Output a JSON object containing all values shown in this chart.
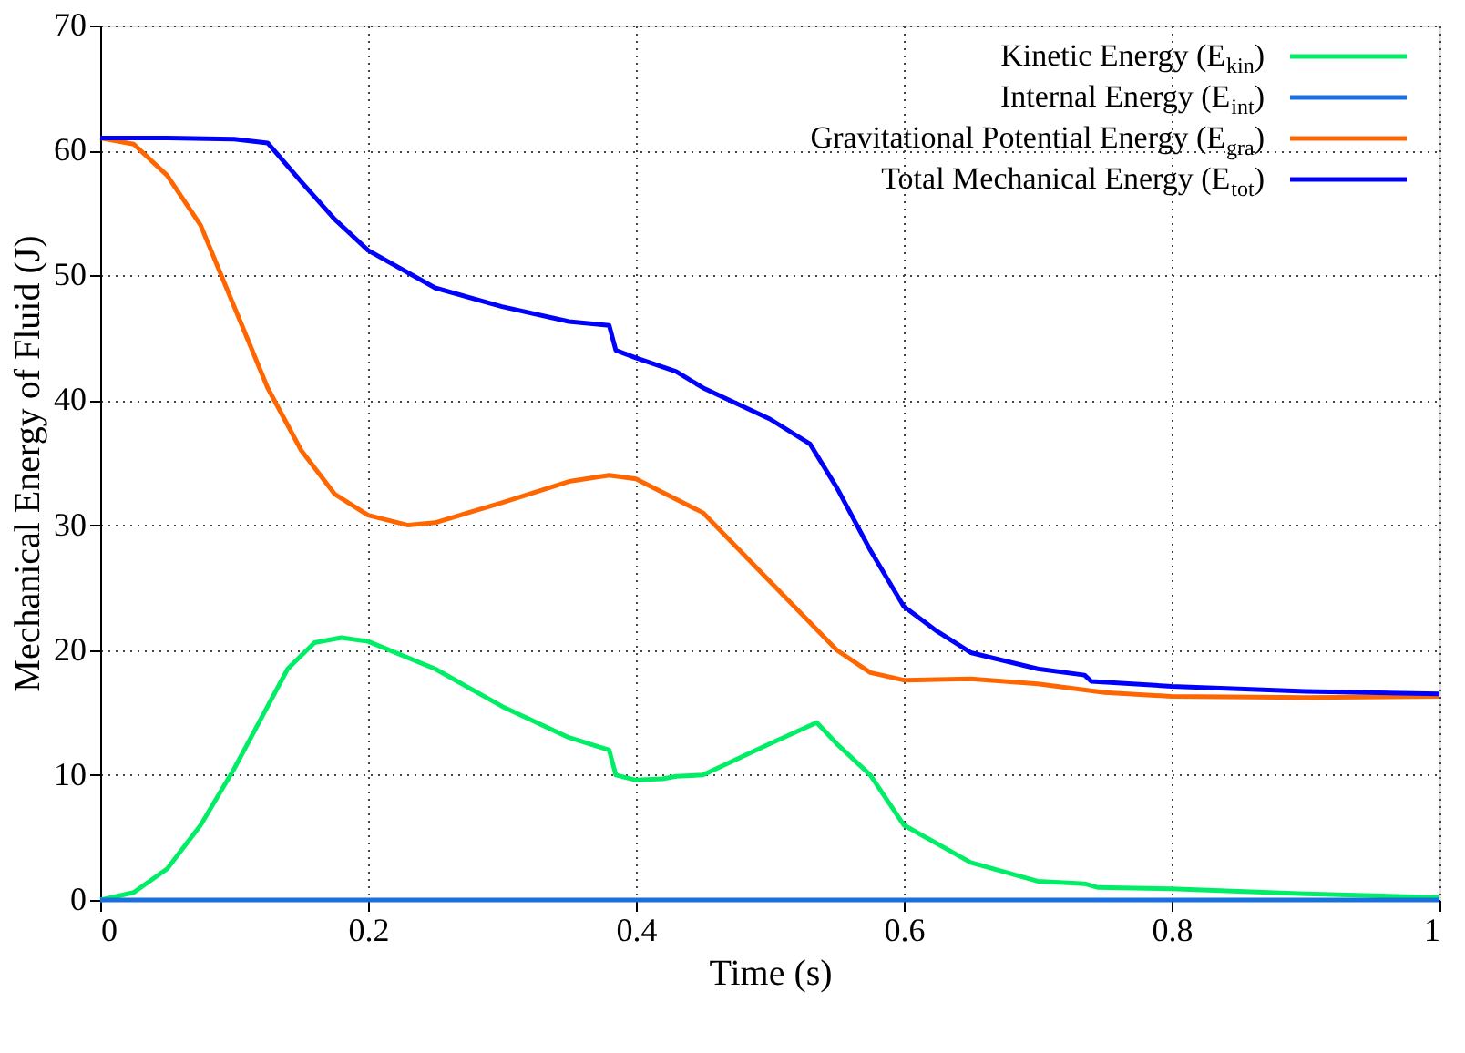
{
  "chart_data": {
    "type": "line",
    "xlabel": "Time (s)",
    "ylabel": "Mechanical Energy of Fluid (J)",
    "xlim": [
      0,
      1
    ],
    "ylim": [
      0,
      70
    ],
    "xticks": [
      0,
      0.2,
      0.4,
      0.6,
      0.8,
      1
    ],
    "yticks": [
      0,
      10,
      20,
      30,
      40,
      50,
      60,
      70
    ],
    "grid": true,
    "legend": "top right",
    "marker": "none",
    "line_style": "solid",
    "series": [
      {
        "name": "Kinetic Energy (E$_{kin}$)",
        "color": "#00ee66",
        "x": [
          0,
          0.025,
          0.05,
          0.075,
          0.1,
          0.125,
          0.14,
          0.16,
          0.18,
          0.2,
          0.25,
          0.3,
          0.35,
          0.38,
          0.385,
          0.4,
          0.42,
          0.43,
          0.45,
          0.5,
          0.535,
          0.55,
          0.575,
          0.6,
          0.65,
          0.7,
          0.735,
          0.745,
          0.8,
          0.9,
          1.0
        ],
        "values": [
          0,
          0.6,
          2.5,
          6,
          10.5,
          15.5,
          18.5,
          20.6,
          21,
          20.7,
          18.5,
          15.5,
          13,
          12,
          10,
          9.6,
          9.7,
          9.9,
          10,
          12.5,
          14.2,
          12.5,
          10,
          6,
          3,
          1.5,
          1.3,
          1.0,
          0.9,
          0.5,
          0.2
        ]
      },
      {
        "name": "Internal Energy (E$_{int}$)",
        "color": "#1a6fe0",
        "x": [
          0,
          0.25,
          0.5,
          0.75,
          1.0
        ],
        "values": [
          0,
          0,
          0,
          0,
          0
        ]
      },
      {
        "name": "Gravitational Potential Energy (E$_{gra}$)",
        "color": "#ff6600",
        "x": [
          0,
          0.025,
          0.05,
          0.075,
          0.1,
          0.125,
          0.15,
          0.175,
          0.2,
          0.23,
          0.25,
          0.3,
          0.35,
          0.38,
          0.4,
          0.45,
          0.5,
          0.55,
          0.575,
          0.6,
          0.65,
          0.7,
          0.75,
          0.8,
          0.9,
          1.0
        ],
        "values": [
          61,
          60.5,
          58,
          54,
          47.5,
          41,
          36,
          32.5,
          30.8,
          30,
          30.2,
          31.8,
          33.5,
          34,
          33.7,
          31,
          25.5,
          20,
          18.2,
          17.6,
          17.7,
          17.3,
          16.6,
          16.3,
          16.2,
          16.3
        ]
      },
      {
        "name": "Total Mechanical Energy (E$_{tot}$)",
        "color": "#0000ff",
        "x": [
          0,
          0.05,
          0.1,
          0.125,
          0.15,
          0.175,
          0.2,
          0.25,
          0.3,
          0.35,
          0.38,
          0.385,
          0.4,
          0.43,
          0.45,
          0.5,
          0.53,
          0.55,
          0.575,
          0.6,
          0.625,
          0.65,
          0.7,
          0.735,
          0.74,
          0.8,
          0.9,
          1.0
        ],
        "values": [
          61,
          61,
          60.9,
          60.6,
          57.5,
          54.5,
          52,
          49,
          47.5,
          46.3,
          46,
          44,
          43.4,
          42.3,
          41,
          38.5,
          36.5,
          33,
          28,
          23.5,
          21.5,
          19.8,
          18.5,
          18,
          17.5,
          17.1,
          16.7,
          16.5
        ]
      }
    ]
  }
}
